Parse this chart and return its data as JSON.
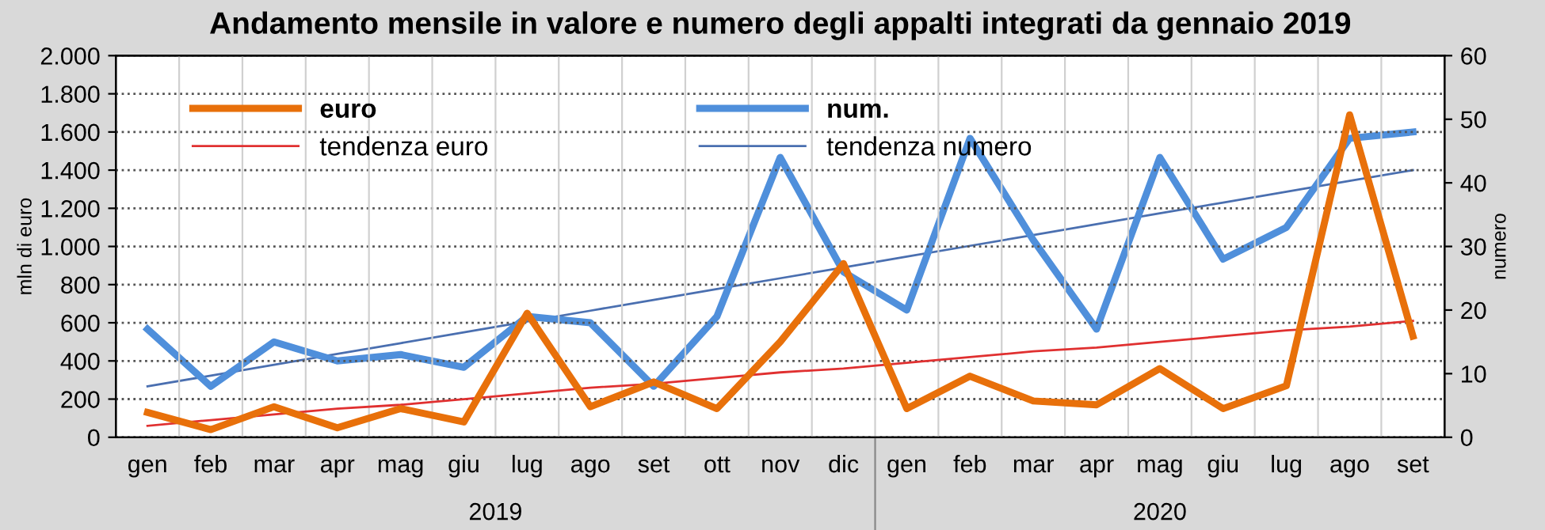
{
  "chart_data": {
    "type": "line",
    "title": "Andamento mensile in valore e numero degli appalti integrati da gennaio 2019",
    "categories": [
      "gen",
      "feb",
      "mar",
      "apr",
      "mag",
      "giu",
      "lug",
      "ago",
      "set",
      "ott",
      "nov",
      "dic",
      "gen",
      "feb",
      "mar",
      "apr",
      "mag",
      "giu",
      "lug",
      "ago",
      "set"
    ],
    "series": [
      {
        "name": "euro",
        "color": "#e8700a",
        "values": [
          130,
          40,
          160,
          50,
          150,
          80,
          650,
          160,
          290,
          150,
          500,
          910,
          150,
          320,
          190,
          170,
          360,
          150,
          270,
          1690,
          530
        ]
      },
      {
        "name": "num.",
        "color": "#4f8fdb",
        "axis": "y2",
        "values": [
          17,
          8,
          15,
          12,
          13,
          11,
          19,
          18,
          8,
          19,
          44,
          26,
          20,
          47,
          31,
          17,
          44,
          28,
          33,
          47,
          48
        ]
      },
      {
        "name": "tendenza euro",
        "color": "#e03030",
        "values": [
          60,
          90,
          120,
          150,
          170,
          200,
          230,
          260,
          280,
          310,
          340,
          360,
          390,
          420,
          450,
          470,
          500,
          530,
          560,
          580,
          610
        ]
      },
      {
        "name": "tendenza numero",
        "color": "#4a6fb0",
        "axis": "y2",
        "values": [
          8,
          9.7,
          11.4,
          13.1,
          14.8,
          16.5,
          18.2,
          19.9,
          21.6,
          23.3,
          25,
          26.7,
          28.4,
          30.1,
          31.8,
          33.5,
          35.2,
          36.9,
          38.6,
          40.3,
          42
        ]
      }
    ],
    "ylabel": "mln di euro",
    "y2label": "numero",
    "ylim": [
      0,
      2000
    ],
    "yticks": [
      {
        "value": 0,
        "label": "0"
      },
      {
        "value": 200,
        "label": "200"
      },
      {
        "value": 400,
        "label": "400"
      },
      {
        "value": 600,
        "label": "600"
      },
      {
        "value": 800,
        "label": "800"
      },
      {
        "value": 1000,
        "label": "1.000"
      },
      {
        "value": 1200,
        "label": "1.200"
      },
      {
        "value": 1400,
        "label": "1.400"
      },
      {
        "value": 1600,
        "label": "1.600"
      },
      {
        "value": 1800,
        "label": "1.800"
      },
      {
        "value": 2000,
        "label": "2.000"
      }
    ],
    "y2lim": [
      0,
      60
    ],
    "y2ticks": [
      0,
      10,
      20,
      30,
      40,
      50,
      60
    ],
    "annotations": [
      "2019",
      "2020"
    ],
    "grid": true,
    "legend": "top left",
    "marker": "none",
    "line_style": "solid"
  }
}
